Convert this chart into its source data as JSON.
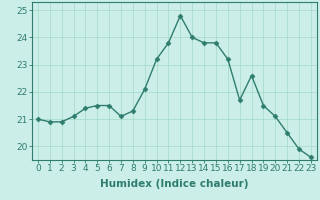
{
  "x": [
    0,
    1,
    2,
    3,
    4,
    5,
    6,
    7,
    8,
    9,
    10,
    11,
    12,
    13,
    14,
    15,
    16,
    17,
    18,
    19,
    20,
    21,
    22,
    23
  ],
  "y": [
    21.0,
    20.9,
    20.9,
    21.1,
    21.4,
    21.5,
    21.5,
    21.1,
    21.3,
    22.1,
    23.2,
    23.8,
    24.8,
    24.0,
    23.8,
    23.8,
    23.2,
    21.7,
    22.6,
    21.5,
    21.1,
    20.5,
    19.9,
    19.6
  ],
  "xlabel": "Humidex (Indice chaleur)",
  "ylim": [
    19.5,
    25.3
  ],
  "xlim": [
    -0.5,
    23.5
  ],
  "yticks": [
    20,
    21,
    22,
    23,
    24,
    25
  ],
  "xticks": [
    0,
    1,
    2,
    3,
    4,
    5,
    6,
    7,
    8,
    9,
    10,
    11,
    12,
    13,
    14,
    15,
    16,
    17,
    18,
    19,
    20,
    21,
    22,
    23
  ],
  "line_color": "#2e7d6e",
  "marker": "D",
  "marker_size": 2.5,
  "bg_color": "#cceee8",
  "grid_color": "#aaddcc",
  "tick_label_fontsize": 6.5,
  "xlabel_fontsize": 7.5
}
